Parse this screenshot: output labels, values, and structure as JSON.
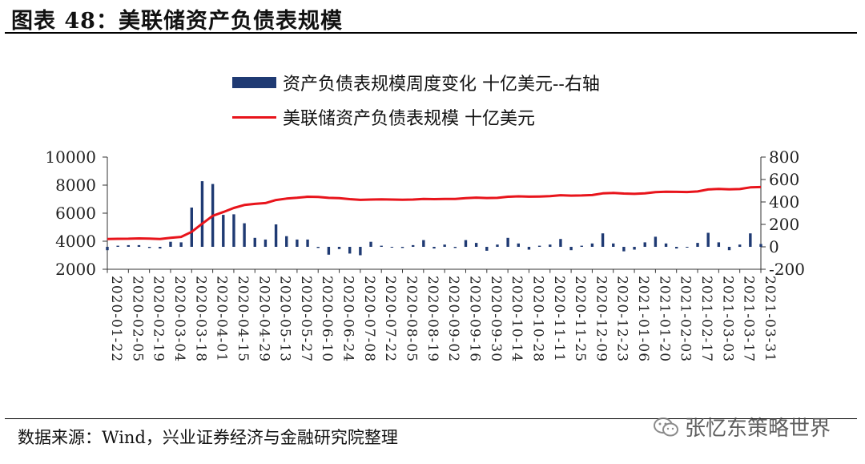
{
  "header": {
    "title": "图表 48：美联储资产负债表规模"
  },
  "footer": {
    "source": "数据来源：Wind，兴业证券经济与金融研究院整理",
    "watermark": "张忆东策略世界",
    "watermark_icon": "wechat-icon"
  },
  "colors": {
    "bar": "#1f3a73",
    "line": "#e8141b"
  },
  "chart_data": {
    "type": "bar+line",
    "title": "",
    "left_axis": {
      "ylim": [
        2000,
        10000
      ],
      "ticks": [
        2000,
        4000,
        6000,
        8000,
        10000
      ]
    },
    "right_axis": {
      "ylim": [
        -200,
        800
      ],
      "ticks": [
        -200,
        0,
        200,
        400,
        600,
        800
      ]
    },
    "legend": [
      {
        "name": "资产负债表规模周度变化 十亿美元--右轴",
        "type": "bar",
        "axis": "right"
      },
      {
        "name": "美联储资产负债表规模 十亿美元",
        "type": "line",
        "axis": "left"
      }
    ],
    "legend_position": "top",
    "x_tick_labels": [
      "2020-01-22",
      "2020-02-05",
      "2020-02-19",
      "2020-03-04",
      "2020-03-18",
      "2020-04-01",
      "2020-04-15",
      "2020-04-29",
      "2020-05-13",
      "2020-05-27",
      "2020-06-10",
      "2020-06-24",
      "2020-07-08",
      "2020-07-22",
      "2020-08-05",
      "2020-08-19",
      "2020-09-02",
      "2020-09-16",
      "2020-09-30",
      "2020-10-14",
      "2020-10-28",
      "2020-11-11",
      "2020-11-25",
      "2020-12-09",
      "2020-12-23",
      "2021-01-06",
      "2021-01-20",
      "2021-02-03",
      "2021-02-17",
      "2021-03-03",
      "2021-03-17",
      "2021-03-31"
    ],
    "dates": [
      "2020-01-22",
      "2020-01-29",
      "2020-02-05",
      "2020-02-12",
      "2020-02-19",
      "2020-02-26",
      "2020-03-04",
      "2020-03-11",
      "2020-03-18",
      "2020-03-25",
      "2020-04-01",
      "2020-04-08",
      "2020-04-15",
      "2020-04-22",
      "2020-04-29",
      "2020-05-06",
      "2020-05-13",
      "2020-05-20",
      "2020-05-27",
      "2020-06-03",
      "2020-06-10",
      "2020-06-17",
      "2020-06-24",
      "2020-07-01",
      "2020-07-08",
      "2020-07-15",
      "2020-07-22",
      "2020-07-29",
      "2020-08-05",
      "2020-08-12",
      "2020-08-19",
      "2020-08-26",
      "2020-09-02",
      "2020-09-09",
      "2020-09-16",
      "2020-09-23",
      "2020-09-30",
      "2020-10-07",
      "2020-10-14",
      "2020-10-21",
      "2020-10-28",
      "2020-11-04",
      "2020-11-11",
      "2020-11-18",
      "2020-11-25",
      "2020-12-02",
      "2020-12-09",
      "2020-12-16",
      "2020-12-23",
      "2020-12-30",
      "2021-01-06",
      "2021-01-13",
      "2021-01-20",
      "2021-01-27",
      "2021-02-03",
      "2021-02-10",
      "2021-02-17",
      "2021-02-24",
      "2021-03-03",
      "2021-03-10",
      "2021-03-17",
      "2021-03-24",
      "2021-03-31"
    ],
    "series": [
      {
        "name": "资产负债表规模周度变化 十亿美元--右轴",
        "axis": "right",
        "values": [
          -30,
          10,
          15,
          15,
          -10,
          -15,
          45,
          40,
          350,
          585,
          560,
          285,
          290,
          210,
          80,
          65,
          200,
          95,
          65,
          65,
          -10,
          -70,
          -20,
          -60,
          -75,
          45,
          10,
          -5,
          -10,
          15,
          60,
          -15,
          20,
          -10,
          60,
          35,
          -35,
          20,
          80,
          30,
          -25,
          10,
          20,
          70,
          -30,
          10,
          30,
          120,
          30,
          -40,
          -25,
          40,
          90,
          30,
          -15,
          -5,
          35,
          125,
          40,
          -30,
          20,
          120,
          25
        ]
      },
      {
        "name": "美联储资产负债表规模 十亿美元",
        "axis": "left",
        "values": [
          4160,
          4170,
          4180,
          4200,
          4190,
          4160,
          4240,
          4310,
          4670,
          5250,
          5810,
          6080,
          6370,
          6580,
          6660,
          6720,
          6940,
          7040,
          7100,
          7170,
          7160,
          7090,
          7070,
          7000,
          6950,
          6970,
          6980,
          6970,
          6960,
          6970,
          7010,
          7000,
          7020,
          7010,
          7070,
          7110,
          7080,
          7090,
          7170,
          7200,
          7180,
          7190,
          7210,
          7280,
          7250,
          7260,
          7290,
          7410,
          7440,
          7400,
          7380,
          7420,
          7500,
          7530,
          7520,
          7510,
          7550,
          7690,
          7730,
          7700,
          7720,
          7840,
          7860
        ]
      }
    ]
  }
}
